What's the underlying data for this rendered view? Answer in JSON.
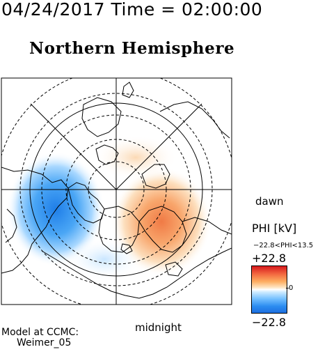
{
  "header": {
    "time_title": "04/24/2017 Time = 02:00:00",
    "hemisphere_title": "Northern Hemisphere"
  },
  "map": {
    "dawn_label": "dawn",
    "midnight_label": "midnight",
    "colors": {
      "positive": "#e8603a",
      "negative": "#2e8bf0",
      "neutral": "#ffffff"
    }
  },
  "colorbar": {
    "title": "PHI [kV]",
    "range_text": "−22.8<PHI<13.5",
    "max_label": "+22.8",
    "min_label": "−22.8",
    "zero_label": "0"
  },
  "credit": {
    "line1": "Model at CCMC:",
    "line2": "Weimer_05"
  }
}
